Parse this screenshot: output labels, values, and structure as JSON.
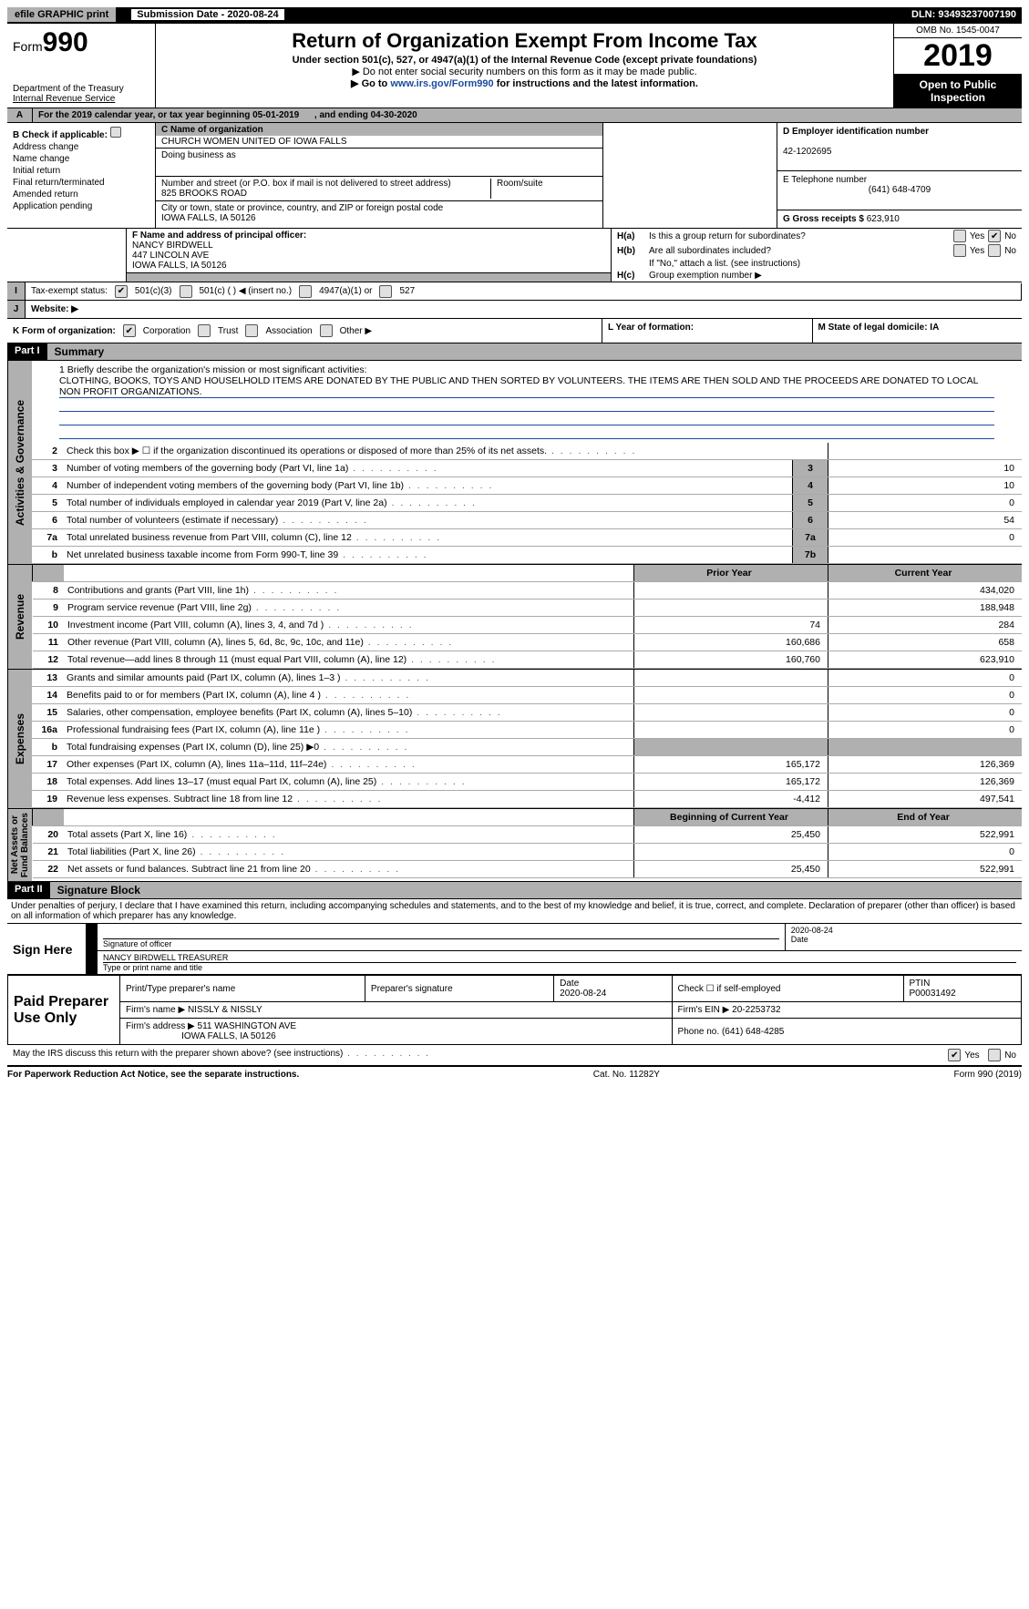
{
  "topbar": {
    "efile": "efile GRAPHIC  print",
    "submission_label": "Submission Date - 2020-08-24",
    "dln": "DLN: 93493237007190"
  },
  "header": {
    "form_word": "Form",
    "form_num": "990",
    "dept": "Department of the Treasury",
    "irs": "Internal Revenue Service",
    "title": "Return of Organization Exempt From Income Tax",
    "sub": "Under section 501(c), 527, or 4947(a)(1) of the Internal Revenue Code (except private foundations)",
    "note1": "▶ Do not enter social security numbers on this form as it may be made public.",
    "note2_pre": "▶ Go to ",
    "note2_link": "www.irs.gov/Form990",
    "note2_post": " for instructions and the latest information.",
    "omb": "OMB No. 1545-0047",
    "year": "2019",
    "open": "Open to Public Inspection"
  },
  "secA": {
    "text": "For the 2019 calendar year, or tax year beginning 05-01-2019",
    "ending": ", and ending 04-30-2020"
  },
  "colB": {
    "title": "B Check if applicable:",
    "items": [
      "Address change",
      "Name change",
      "Initial return",
      "Final return/terminated",
      "Amended return",
      "Application pending"
    ]
  },
  "colC": {
    "name_label": "C Name of organization",
    "name": "CHURCH WOMEN UNITED OF IOWA FALLS",
    "dba_label": "Doing business as",
    "dba": "",
    "street_label": "Number and street (or P.O. box if mail is not delivered to street address)",
    "room_label": "Room/suite",
    "street": "825 BROOKS ROAD",
    "city_label": "City or town, state or province, country, and ZIP or foreign postal code",
    "city": "IOWA FALLS, IA  50126"
  },
  "colD": {
    "ein_label": "D Employer identification number",
    "ein": "42-1202695",
    "tel_label": "E Telephone number",
    "tel": "(641) 648-4709",
    "gross_label": "G Gross receipts $",
    "gross": "623,910"
  },
  "f": {
    "label": "F  Name and address of principal officer:",
    "name": "NANCY BIRDWELL",
    "street": "447 LINCOLN AVE",
    "city": "IOWA FALLS, IA  50126"
  },
  "h": {
    "a_label": "H(a)",
    "a_text": "Is this a group return for subordinates?",
    "b_label": "H(b)",
    "b_text": "Are all subordinates included?",
    "b_note": "If \"No,\" attach a list. (see instructions)",
    "c_label": "H(c)",
    "c_text": "Group exemption number ▶"
  },
  "i": {
    "label": "Tax-exempt status:",
    "opts": [
      "501(c)(3)",
      "501(c) (   ) ◀ (insert no.)",
      "4947(a)(1) or",
      "527"
    ]
  },
  "j": {
    "label": "Website: ▶"
  },
  "k": {
    "label": "K Form of organization:",
    "opts": [
      "Corporation",
      "Trust",
      "Association",
      "Other ▶"
    ],
    "l": "L Year of formation:",
    "m": "M State of legal domicile: IA"
  },
  "partI": {
    "head": "Part I",
    "title": "Summary"
  },
  "mission": {
    "q": "1  Briefly describe the organization's mission or most significant activities:",
    "text": "CLOTHING, BOOKS, TOYS AND HOUSELHOLD ITEMS ARE DONATED BY THE PUBLIC AND THEN SORTED BY VOLUNTEERS. THE ITEMS ARE THEN SOLD AND THE PROCEEDS ARE DONATED TO LOCAL NON PROFIT ORGANIZATIONS."
  },
  "gov_lines": [
    {
      "n": "2",
      "d": "Check this box ▶ ☐  if the organization discontinued its operations or disposed of more than 25% of its net assets.",
      "box": "",
      "v": ""
    },
    {
      "n": "3",
      "d": "Number of voting members of the governing body (Part VI, line 1a)",
      "box": "3",
      "v": "10"
    },
    {
      "n": "4",
      "d": "Number of independent voting members of the governing body (Part VI, line 1b)",
      "box": "4",
      "v": "10"
    },
    {
      "n": "5",
      "d": "Total number of individuals employed in calendar year 2019 (Part V, line 2a)",
      "box": "5",
      "v": "0"
    },
    {
      "n": "6",
      "d": "Total number of volunteers (estimate if necessary)",
      "box": "6",
      "v": "54"
    },
    {
      "n": "7a",
      "d": "Total unrelated business revenue from Part VIII, column (C), line 12",
      "box": "7a",
      "v": "0"
    },
    {
      "n": "b",
      "d": "Net unrelated business taxable income from Form 990-T, line 39",
      "box": "7b",
      "v": ""
    }
  ],
  "col_headers": {
    "prior": "Prior Year",
    "current": "Current Year"
  },
  "rev_lines": [
    {
      "n": "8",
      "d": "Contributions and grants (Part VIII, line 1h)",
      "p": "",
      "c": "434,020"
    },
    {
      "n": "9",
      "d": "Program service revenue (Part VIII, line 2g)",
      "p": "",
      "c": "188,948"
    },
    {
      "n": "10",
      "d": "Investment income (Part VIII, column (A), lines 3, 4, and 7d )",
      "p": "74",
      "c": "284"
    },
    {
      "n": "11",
      "d": "Other revenue (Part VIII, column (A), lines 5, 6d, 8c, 9c, 10c, and 11e)",
      "p": "160,686",
      "c": "658"
    },
    {
      "n": "12",
      "d": "Total revenue—add lines 8 through 11 (must equal Part VIII, column (A), line 12)",
      "p": "160,760",
      "c": "623,910"
    }
  ],
  "exp_lines": [
    {
      "n": "13",
      "d": "Grants and similar amounts paid (Part IX, column (A), lines 1–3 )",
      "p": "",
      "c": "0"
    },
    {
      "n": "14",
      "d": "Benefits paid to or for members (Part IX, column (A), line 4 )",
      "p": "",
      "c": "0"
    },
    {
      "n": "15",
      "d": "Salaries, other compensation, employee benefits (Part IX, column (A), lines 5–10)",
      "p": "",
      "c": "0"
    },
    {
      "n": "16a",
      "d": "Professional fundraising fees (Part IX, column (A), line 11e )",
      "p": "",
      "c": "0"
    },
    {
      "n": "b",
      "d": "Total fundraising expenses (Part IX, column (D), line 25) ▶0",
      "p": "grey",
      "c": "grey"
    },
    {
      "n": "17",
      "d": "Other expenses (Part IX, column (A), lines 11a–11d, 11f–24e)",
      "p": "165,172",
      "c": "126,369"
    },
    {
      "n": "18",
      "d": "Total expenses. Add lines 13–17 (must equal Part IX, column (A), line 25)",
      "p": "165,172",
      "c": "126,369"
    },
    {
      "n": "19",
      "d": "Revenue less expenses. Subtract line 18 from line 12",
      "p": "-4,412",
      "c": "497,541"
    }
  ],
  "na_headers": {
    "begin": "Beginning of Current Year",
    "end": "End of Year"
  },
  "na_lines": [
    {
      "n": "20",
      "d": "Total assets (Part X, line 16)",
      "p": "25,450",
      "c": "522,991"
    },
    {
      "n": "21",
      "d": "Total liabilities (Part X, line 26)",
      "p": "",
      "c": "0"
    },
    {
      "n": "22",
      "d": "Net assets or fund balances. Subtract line 21 from line 20",
      "p": "25,450",
      "c": "522,991"
    }
  ],
  "partII": {
    "head": "Part II",
    "title": "Signature Block"
  },
  "decl": "Under penalties of perjury, I declare that I have examined this return, including accompanying schedules and statements, and to the best of my knowledge and belief, it is true, correct, and complete. Declaration of preparer (other than officer) is based on all information of which preparer has any knowledge.",
  "sign": {
    "here": "Sign Here",
    "sig_label": "Signature of officer",
    "date": "2020-08-24",
    "date_label": "Date",
    "name": "NANCY BIRDWELL TREASURER",
    "name_label": "Type or print name and title"
  },
  "paid": {
    "label": "Paid Preparer Use Only",
    "hdr": [
      "Print/Type preparer's name",
      "Preparer's signature",
      "Date",
      "",
      "PTIN"
    ],
    "date": "2020-08-24",
    "check": "Check ☐ if self-employed",
    "ptin": "P00031492",
    "firm_label": "Firm's name   ▶",
    "firm": "NISSLY & NISSLY",
    "ein_label": "Firm's EIN ▶",
    "ein": "20-2253732",
    "addr_label": "Firm's address ▶",
    "addr1": "511 WASHINGTON AVE",
    "addr2": "IOWA FALLS, IA  50126",
    "phone_label": "Phone no.",
    "phone": "(641) 648-4285"
  },
  "discuss": "May the IRS discuss this return with the preparer shown above? (see instructions)",
  "footer": {
    "left": "For Paperwork Reduction Act Notice, see the separate instructions.",
    "mid": "Cat. No. 11282Y",
    "right": "Form 990 (2019)"
  }
}
